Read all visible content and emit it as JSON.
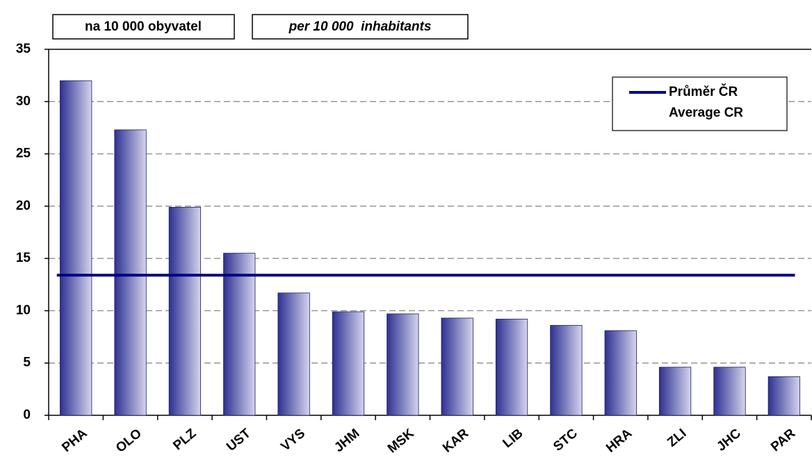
{
  "chart_data": {
    "type": "bar",
    "labels": [
      "na 10 000 obyvatel",
      "per 10 000  inhabitants"
    ],
    "categories": [
      "PHA",
      "OLO",
      "PLZ",
      "UST",
      "VYS",
      "JHM",
      "MSK",
      "KAR",
      "LIB",
      "STC",
      "HRA",
      "ZLI",
      "JHC",
      "PAR"
    ],
    "values": [
      32.0,
      27.3,
      19.9,
      15.5,
      11.7,
      9.9,
      9.7,
      9.3,
      9.2,
      8.6,
      8.1,
      4.6,
      4.6,
      3.7
    ],
    "color": "#2e3192",
    "average": {
      "name": [
        "Průměr ČR",
        "Average CR"
      ],
      "value": 13.4,
      "color": "#000080"
    },
    "ylim": [
      0,
      35
    ],
    "yticks": [
      0,
      5,
      10,
      15,
      20,
      25,
      30,
      35
    ],
    "grid": true
  }
}
